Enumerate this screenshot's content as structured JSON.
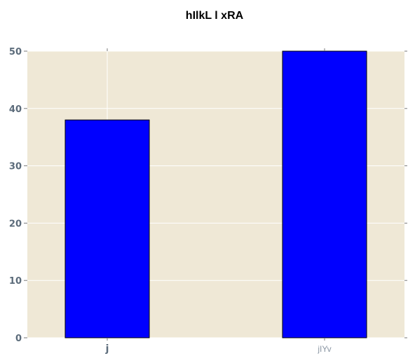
{
  "chart_data": {
    "type": "bar",
    "title": "hIlkL  l xRA",
    "xlabel": "",
    "ylabel": "",
    "categories": [
      "j",
      "jIYv"
    ],
    "values": [
      38,
      50
    ],
    "ylim": [
      0,
      50
    ],
    "yticks": [
      0,
      10,
      20,
      30,
      40,
      50
    ],
    "grid": true,
    "legend": "none",
    "colors": {
      "bar": "#0000ff",
      "bar_edge": "#000000",
      "plot_background": "#efe8d6",
      "grid": "#ffffff",
      "tick_text": "#5b6b7a",
      "title_text": "#000000"
    }
  }
}
